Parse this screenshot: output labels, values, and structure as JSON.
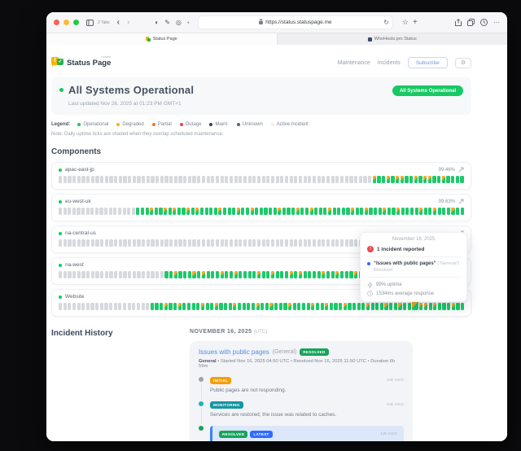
{
  "browser": {
    "tabs_count": "2 Tabs",
    "url": "https://status.statuspage.me",
    "tabs": [
      {
        "label": "Status Page"
      },
      {
        "label": "WhoHosts.pro Status"
      }
    ]
  },
  "header": {
    "brand": "Status Page",
    "brand_tag": "hosted",
    "nav": [
      "Maintenance",
      "Incidents"
    ],
    "subscribe_label": "Subscribe"
  },
  "hero": {
    "title": "All Systems Operational",
    "last_updated": "Last updated Nov 26, 2025 at 01:23 PM GMT+1",
    "badge": "All Systems Operational",
    "status_color": "#17c964"
  },
  "legend": {
    "label": "Legend:",
    "items": [
      {
        "label": "Operational",
        "color": "#17c964"
      },
      {
        "label": "Degraded",
        "color": "#f5b50a"
      },
      {
        "label": "Partial",
        "color": "#f97316"
      },
      {
        "label": "Outage",
        "color": "#e5484d"
      },
      {
        "label": "Maint.",
        "color": "#334155"
      },
      {
        "label": "Unknown",
        "color": "#5b6470"
      },
      {
        "label": "Active Incident",
        "color": "#faeed0"
      }
    ],
    "note": "Note: Daily uptime ticks are shaded when they overlap scheduled maintenance."
  },
  "components": {
    "title": "Components",
    "rows": [
      {
        "name": "apac-east-jp",
        "percent": "99.46%",
        "dot": "#17c964",
        "pattern": [
          [
            "u",
            68
          ],
          [
            "m",
            1
          ],
          [
            "o",
            2
          ],
          [
            "m",
            1
          ],
          [
            "o",
            1
          ],
          [
            "m",
            2
          ],
          [
            "o",
            2
          ],
          [
            "m",
            1
          ],
          [
            "o",
            1
          ],
          [
            "m",
            2
          ],
          [
            "o",
            2
          ],
          [
            "m",
            1
          ],
          [
            "o",
            4
          ]
        ]
      },
      {
        "name": "eu-west-uk",
        "percent": "99.63%",
        "dot": "#17c964",
        "pattern": [
          [
            "u",
            17
          ],
          [
            "o",
            3
          ],
          [
            "m",
            1
          ],
          [
            "o",
            2
          ],
          [
            "m",
            1
          ],
          [
            "o",
            1
          ],
          [
            "m",
            1
          ],
          [
            "o",
            2
          ],
          [
            "m",
            1
          ],
          [
            "o",
            1
          ],
          [
            "m",
            1
          ],
          [
            "o",
            4
          ],
          [
            "m",
            1
          ],
          [
            "o",
            3
          ],
          [
            "m",
            1
          ],
          [
            "o",
            2
          ],
          [
            "m",
            1
          ],
          [
            "o",
            5
          ],
          [
            "m",
            1
          ],
          [
            "o",
            3
          ],
          [
            "m",
            1
          ],
          [
            "o",
            2
          ],
          [
            "m",
            1
          ],
          [
            "o",
            3
          ],
          [
            "m",
            1
          ],
          [
            "o",
            4
          ],
          [
            "m",
            1
          ],
          [
            "o",
            2
          ],
          [
            "m",
            1
          ],
          [
            "o",
            3
          ],
          [
            "m",
            1
          ],
          [
            "o",
            2
          ],
          [
            "m",
            1
          ],
          [
            "o",
            4
          ],
          [
            "m",
            1
          ],
          [
            "o",
            2
          ],
          [
            "m",
            1
          ],
          [
            "o",
            3
          ],
          [
            "m",
            1
          ],
          [
            "o",
            2
          ]
        ]
      },
      {
        "name": "na-central-us",
        "percent": "",
        "dot": "#17c964",
        "pattern": [
          [
            "u",
            85
          ],
          [
            "o",
            1
          ],
          [
            "m",
            1
          ],
          [
            "o",
            1
          ]
        ]
      },
      {
        "name": "na-west",
        "percent": "",
        "dot": "#17c964",
        "pattern": [
          [
            "u",
            23
          ],
          [
            "o",
            2
          ],
          [
            "m",
            1
          ],
          [
            "o",
            3
          ],
          [
            "m",
            1
          ],
          [
            "o",
            1
          ],
          [
            "m",
            1
          ],
          [
            "o",
            3
          ],
          [
            "m",
            1
          ],
          [
            "o",
            2
          ],
          [
            "m",
            1
          ],
          [
            "o",
            4
          ],
          [
            "m",
            1
          ],
          [
            "o",
            2
          ],
          [
            "m",
            1
          ],
          [
            "o",
            3
          ],
          [
            "m",
            1
          ],
          [
            "o",
            1
          ],
          [
            "m",
            1
          ],
          [
            "o",
            4
          ],
          [
            "m",
            1
          ],
          [
            "o",
            2
          ],
          [
            "m",
            1
          ],
          [
            "o",
            3
          ],
          [
            "m",
            1
          ],
          [
            "o",
            4
          ],
          [
            "m",
            1
          ],
          [
            "o",
            2
          ],
          [
            "m",
            1
          ],
          [
            "o",
            3
          ],
          [
            "m",
            1
          ],
          [
            "o",
            4
          ],
          [
            "m",
            1
          ],
          [
            "o",
            3
          ],
          [
            "m",
            1
          ],
          [
            "o",
            2
          ]
        ]
      },
      {
        "name": "Website",
        "percent": "",
        "dot": "#17c964",
        "pattern": [
          [
            "u",
            20
          ],
          [
            "o",
            3
          ],
          [
            "m",
            1
          ],
          [
            "o",
            2
          ],
          [
            "m",
            1
          ],
          [
            "o",
            4
          ],
          [
            "m",
            1
          ],
          [
            "o",
            2
          ],
          [
            "m",
            1
          ],
          [
            "o",
            3
          ],
          [
            "m",
            1
          ],
          [
            "o",
            4
          ],
          [
            "m",
            1
          ],
          [
            "o",
            2
          ],
          [
            "m",
            1
          ],
          [
            "o",
            3
          ],
          [
            "m",
            1
          ],
          [
            "o",
            4
          ],
          [
            "m",
            1
          ],
          [
            "o",
            2
          ],
          [
            "m",
            1
          ],
          [
            "o",
            3
          ],
          [
            "m",
            1
          ],
          [
            "o",
            4
          ],
          [
            "m",
            1
          ],
          [
            "o",
            3
          ],
          [
            "m",
            1
          ],
          [
            "o",
            2
          ],
          [
            "m",
            1
          ],
          [
            "o",
            2
          ],
          [
            "h",
            1
          ],
          [
            "m",
            2
          ],
          [
            "o",
            1
          ],
          [
            "m",
            1
          ],
          [
            "o",
            3
          ],
          [
            "m",
            1
          ],
          [
            "o",
            2
          ]
        ]
      }
    ]
  },
  "tooltip": {
    "date": "November 16, 2025",
    "incident_count": "1 incident reported",
    "incident_title": "“Issues with public pages”",
    "incident_scope": "(“General”)",
    "incident_status": "Resolved",
    "uptime": "99% uptime",
    "response": "1534ms average response"
  },
  "history": {
    "title": "Incident History",
    "date_header": "NOVEMBER 16, 2025",
    "date_suffix": "(UTC)",
    "incident": {
      "title": "Issues with public pages",
      "scope": "(General)",
      "badge": "RESOLVED",
      "badge_color": "#17a35a",
      "meta_lead": "General",
      "meta": " • Started Nov 16, 2025 04:50 UTC • Resolved Nov 16, 2025 11:50 UTC • Duration 6h 59m",
      "updates": [
        {
          "badges": [
            {
              "label": "INITIAL",
              "color": "#f59e0b"
            }
          ],
          "time": "1W AGO",
          "text": "Public pages are not responding.",
          "dot": "#9ca3af",
          "latest": false
        },
        {
          "badges": [
            {
              "label": "MONITORING",
              "color": "#1496a3"
            }
          ],
          "time": "1W AGO",
          "text": "Services are restored; the issue was related to caches.",
          "dot": "#16b3bd",
          "latest": false
        },
        {
          "badges": [
            {
              "label": "RESOLVED",
              "color": "#17a35a"
            },
            {
              "label": "LATEST",
              "color": "#2f6bff"
            }
          ],
          "time": "1W AGO",
          "text": "The issue seems to be fixed.",
          "dot": "#17a35a",
          "latest": true
        }
      ]
    }
  }
}
